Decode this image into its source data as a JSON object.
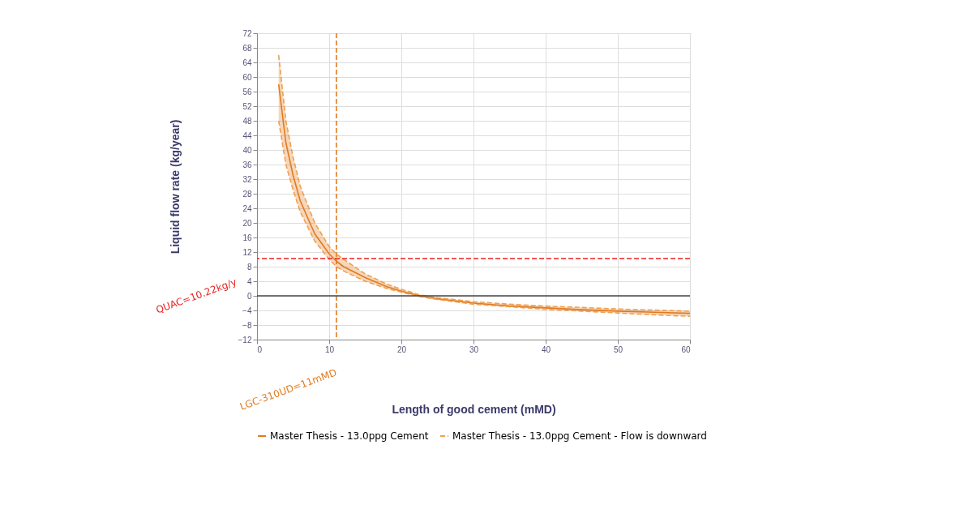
{
  "chart_data": {
    "type": "line",
    "xlabel": "Length of good cement (mMD)",
    "ylabel": "Liquid flow rate (kg/year)",
    "xlim": [
      0,
      60
    ],
    "xticks": [
      0,
      10,
      20,
      30,
      40,
      50,
      60
    ],
    "ylim": [
      -12,
      72
    ],
    "yticks": [
      -12,
      -8,
      -4,
      0,
      4,
      8,
      12,
      16,
      20,
      24,
      28,
      32,
      36,
      40,
      44,
      48,
      52,
      56,
      60,
      64,
      68,
      72
    ],
    "grid": true,
    "legend": "bottom",
    "series": [
      {
        "name": "Master Thesis - 13.0ppg Cement",
        "color": "#e07b20",
        "line_style": "solid",
        "x": [
          3,
          4,
          5,
          6,
          8,
          10,
          11,
          12,
          15,
          18,
          20,
          22.5,
          25,
          30,
          35,
          40,
          45,
          50,
          55,
          60
        ],
        "values": [
          58,
          42,
          33,
          26,
          17,
          11.5,
          9.5,
          8,
          5,
          2.5,
          1.3,
          0,
          -0.8,
          -2,
          -2.8,
          -3.3,
          -3.8,
          -4.2,
          -4.5,
          -4.8
        ],
        "lower": [
          48,
          36,
          29,
          23,
          15,
          10,
          8,
          6.8,
          4,
          2,
          1,
          -0.2,
          -1,
          -2.3,
          -3,
          -3.7,
          -4.2,
          -4.7,
          -5.2,
          -5.6
        ],
        "upper": [
          66,
          48,
          38,
          30,
          20,
          13.5,
          11.5,
          10,
          6,
          3.2,
          1.8,
          0.3,
          -0.5,
          -1.6,
          -2.3,
          -2.8,
          -3.2,
          -3.6,
          -3.9,
          -4.2
        ]
      },
      {
        "name": "Master Thesis - 13.0ppg Cement - Flow is downward",
        "color": "#f0a050",
        "line_style": "dashed",
        "x": [
          3,
          4,
          5,
          6,
          8,
          10,
          11,
          12,
          15,
          18,
          20,
          22.5,
          25,
          30,
          35,
          40,
          45,
          50,
          55,
          60
        ],
        "values": [
          66,
          48,
          38,
          30,
          20,
          13.5,
          11.5,
          10,
          6,
          3.2,
          1.8,
          0.3,
          -0.5,
          -1.6,
          -2.3,
          -2.8,
          -3.2,
          -3.6,
          -3.9,
          -4.2
        ]
      },
      {
        "color": "#f0a050",
        "line_style": "dashed",
        "x": [
          3,
          4,
          5,
          6,
          8,
          10,
          11,
          12,
          15,
          18,
          20,
          22.5,
          25,
          30,
          35,
          40,
          45,
          50,
          55,
          60
        ],
        "values": [
          48,
          36,
          29,
          23,
          15,
          10,
          8,
          6.8,
          4,
          2,
          1,
          -0.2,
          -1,
          -2.3,
          -3,
          -3.7,
          -4.2,
          -4.7,
          -5.2,
          -5.6
        ]
      }
    ],
    "ref_lines": [
      {
        "axis": "y",
        "value": 10.22,
        "label": "QUAC=10.22kg/y",
        "color": "#ee2222",
        "line_style": "dashed"
      },
      {
        "axis": "x",
        "value": 11,
        "label": "LGC-310UD=11mMD",
        "color": "#e07b20",
        "line_style": "dashed"
      },
      {
        "axis": "y",
        "value": 0,
        "color": "#444444",
        "line_style": "solid"
      }
    ]
  }
}
